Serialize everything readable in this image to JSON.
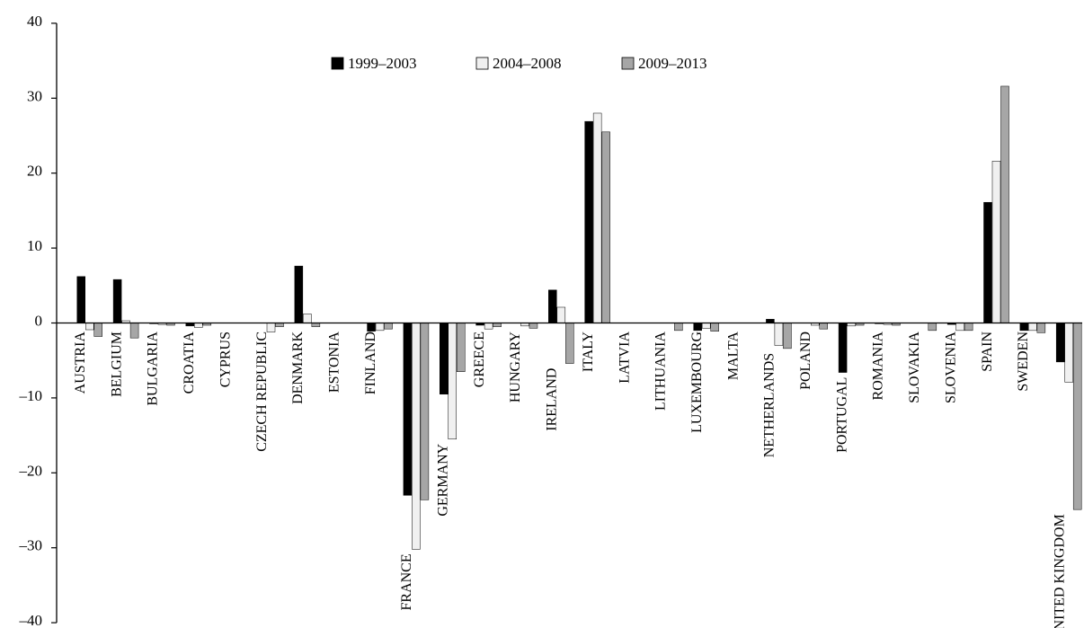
{
  "chart_data": {
    "type": "bar",
    "title": "",
    "xlabel": "",
    "ylabel": "",
    "ylim": [
      -40,
      40
    ],
    "yticks": [
      40,
      30,
      20,
      10,
      0,
      -10,
      -20,
      -30,
      -40
    ],
    "ytick_labels": [
      "40",
      "30",
      "20",
      "10",
      "0",
      "–10",
      "–20",
      "–30",
      "–40"
    ],
    "legend_position": "top-center",
    "grid": false,
    "categories": [
      "AUSTRIA",
      "BELGIUM",
      "BULGARIA",
      "CROATIA",
      "CYPRUS",
      "CZECH REPUBLIC",
      "DENMARK",
      "ESTONIA",
      "FINLAND",
      "FRANCE",
      "GERMANY",
      "GREECE",
      "HUNGARY",
      "IRELAND",
      "ITALY",
      "LATVIA",
      "LITHUANIA",
      "LUXEMBOURG",
      "MALTA",
      "NETHERLANDS",
      "POLAND",
      "PORTUGAL",
      "ROMANIA",
      "SLOVAKIA",
      "SLOVENIA",
      "SPAIN",
      "SWEDEN",
      "UNITED KINGDOM"
    ],
    "series": [
      {
        "name": "1999–2003",
        "color": "#000000",
        "values": [
          6.2,
          5.8,
          -0.1,
          -0.4,
          0,
          0,
          7.6,
          0,
          -1.1,
          -23,
          -9.5,
          -0.3,
          0,
          4.4,
          26.9,
          0,
          0,
          -1.0,
          0,
          0.5,
          0,
          -6.6,
          -0.1,
          0,
          -0.2,
          16.1,
          -1.0,
          -5.2
        ]
      },
      {
        "name": "2004–2008",
        "color": "#f0f0f0",
        "values": [
          -0.9,
          0.3,
          -0.2,
          -0.6,
          0,
          -1.2,
          1.2,
          0,
          -1.0,
          -30.2,
          -15.5,
          -0.8,
          -0.4,
          2.1,
          28.0,
          0,
          0,
          -0.7,
          0,
          -3.0,
          -0.3,
          -0.4,
          -0.2,
          0,
          -1.0,
          21.6,
          -1.0,
          -7.9
        ]
      },
      {
        "name": "2009–2013",
        "color": "#a6a6a6",
        "values": [
          -1.8,
          -2.0,
          -0.3,
          -0.3,
          0,
          -0.5,
          -0.5,
          0,
          -0.8,
          -23.6,
          -6.5,
          -0.5,
          -0.7,
          -5.4,
          25.5,
          0,
          -1.0,
          -1.1,
          0,
          -3.4,
          -0.8,
          -0.3,
          -0.3,
          -1.0,
          -1.0,
          31.6,
          -1.3,
          -24.9
        ]
      }
    ]
  }
}
